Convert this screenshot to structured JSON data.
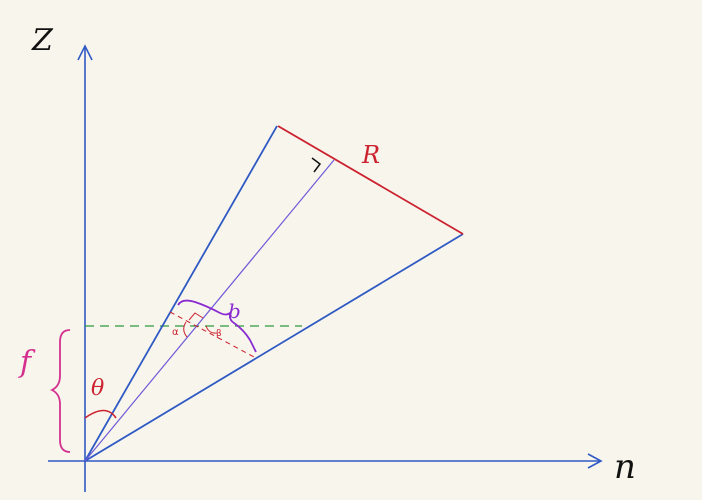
{
  "axes": {
    "vertical_label": "Z",
    "horizontal_label": "n"
  },
  "labels": {
    "R": "R",
    "b": "b",
    "f": "f",
    "theta": "θ",
    "alpha": "α",
    "beta": "β"
  },
  "colors": {
    "background": "#f8f6ec",
    "axis": "#2f59c4",
    "cone_edges": "#2f59c4",
    "bisector": "#6e5ad8",
    "aperture": "#cc2230",
    "focus_line": "#2e9a3e",
    "focus_brace": "#d4308f",
    "b_brace": "#8a2bd1",
    "angle_marks": "#cc2230"
  }
}
